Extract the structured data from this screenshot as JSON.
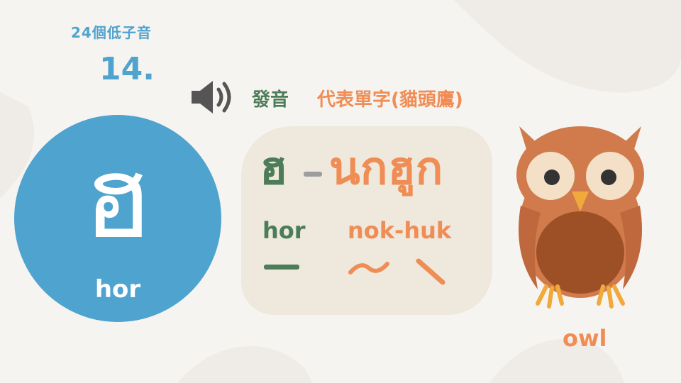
{
  "header": {
    "series_label": "24個低子音",
    "lesson_number": "14."
  },
  "audio": {
    "icon": "speaker-icon",
    "pronunciation_label": "發音",
    "word_label": "代表單字(貓頭鷹)"
  },
  "letter": {
    "character": "ฮ",
    "romanization": "hor"
  },
  "word_card": {
    "consonant": "ฮ",
    "word": "นกฮูก",
    "consonant_romanization": "hor",
    "word_romanization": "nok-huk",
    "tone_marks": [
      "mid-tone-icon",
      "rising-tone-icon",
      "falling-tone-icon"
    ]
  },
  "illustration": {
    "icon": "owl-icon",
    "caption": "owl"
  },
  "colors": {
    "blue": "#4fa3cf",
    "green": "#4d7c59",
    "orange": "#f08d55",
    "card": "#eee8dd",
    "background": "#f6f4f1"
  }
}
